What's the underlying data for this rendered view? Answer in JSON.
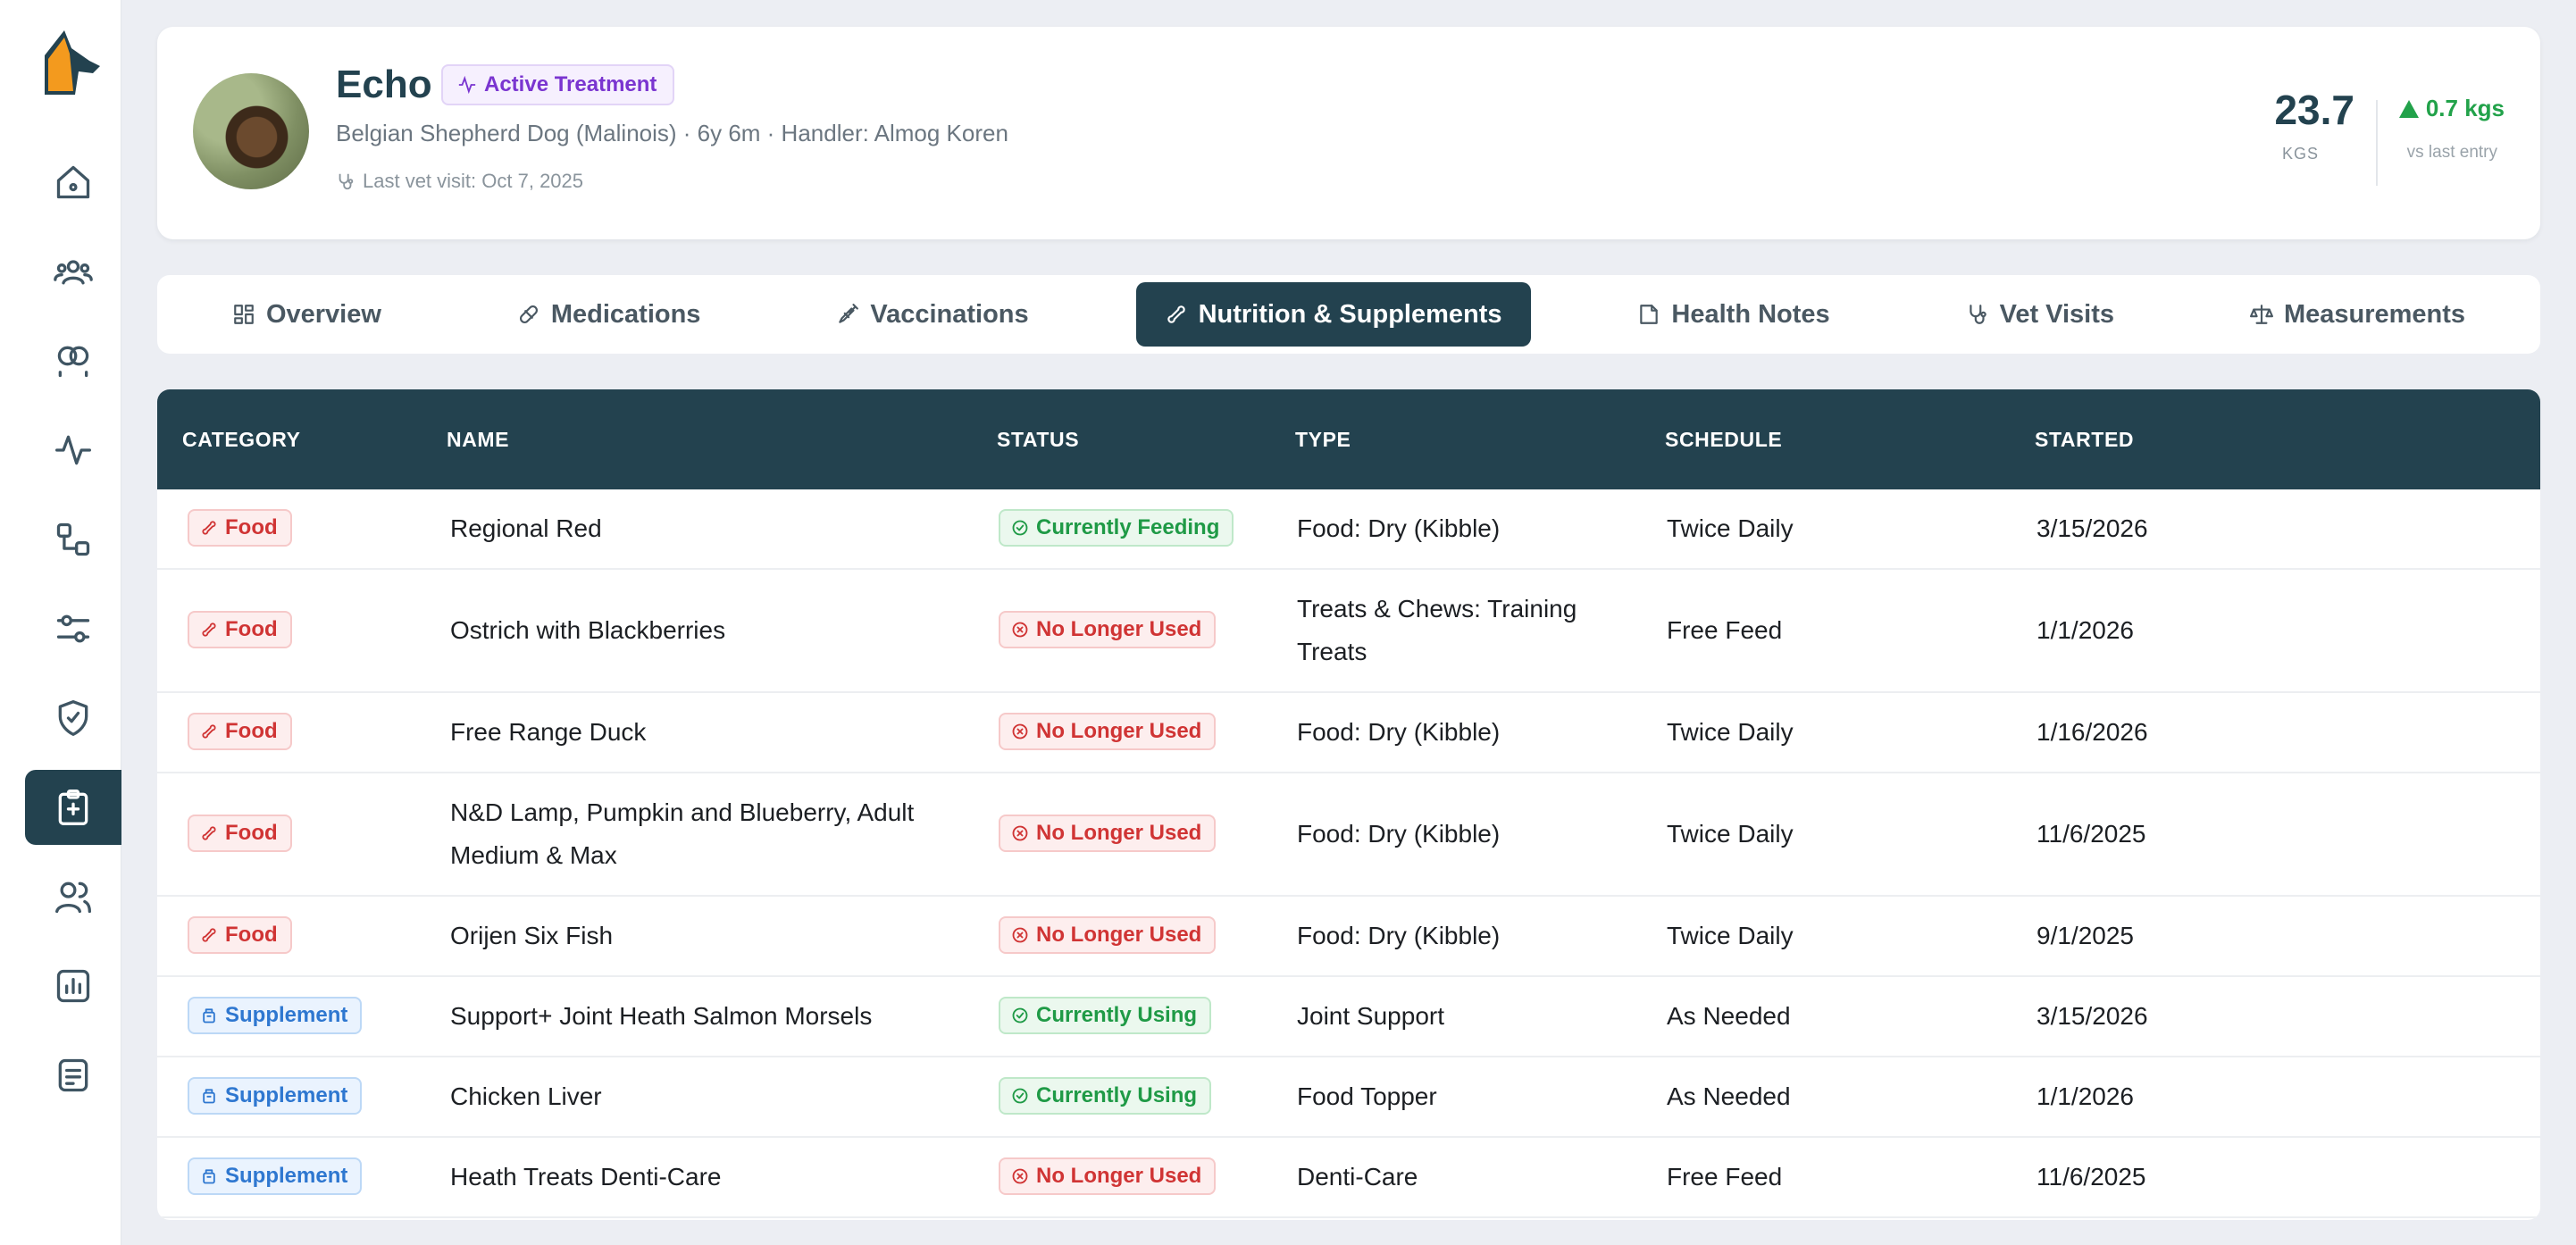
{
  "colors": {
    "primary": "#23424f",
    "background": "#eceef3",
    "accent_purple": "#7a35d0",
    "success": "#1f9a46",
    "danger": "#d03434",
    "info": "#2e77d0"
  },
  "sidebar": {
    "logo": "dog-logo",
    "items": [
      {
        "icon": "home-icon"
      },
      {
        "icon": "team-icon"
      },
      {
        "icon": "circles-icon"
      },
      {
        "icon": "activity-icon"
      },
      {
        "icon": "flow-icon"
      },
      {
        "icon": "sliders-icon"
      },
      {
        "icon": "shield-icon"
      },
      {
        "icon": "medical-clipboard-icon",
        "active": true
      },
      {
        "icon": "users-icon"
      },
      {
        "icon": "chart-icon"
      },
      {
        "icon": "document-icon"
      }
    ]
  },
  "pet": {
    "name": "Echo",
    "status": "Active Treatment",
    "meta": "Belgian Shepherd Dog (Malinois) · 6y 6m · Handler: Almog Koren",
    "last_vet_visit": "Last vet visit: Oct 7, 2025",
    "weight": "23.7",
    "weight_unit": "KGS",
    "weight_delta": "0.7 kgs",
    "weight_delta_sub": "vs last entry"
  },
  "tabs": [
    {
      "label": "Overview",
      "icon": "grid-icon"
    },
    {
      "label": "Medications",
      "icon": "pill-icon"
    },
    {
      "label": "Vaccinations",
      "icon": "syringe-icon"
    },
    {
      "label": "Nutrition & Supplements",
      "icon": "bone-icon",
      "active": true
    },
    {
      "label": "Health Notes",
      "icon": "note-icon"
    },
    {
      "label": "Vet Visits",
      "icon": "stethoscope-icon"
    },
    {
      "label": "Measurements",
      "icon": "scale-icon"
    }
  ],
  "table": {
    "headers": [
      "CATEGORY",
      "NAME",
      "STATUS",
      "TYPE",
      "SCHEDULE",
      "STARTED"
    ],
    "rows": [
      {
        "category": "Food",
        "name": "Regional Red",
        "status": "Currently Feeding",
        "status_kind": "green",
        "type": "Food: Dry (Kibble)",
        "schedule": "Twice Daily",
        "started": "3/15/2026"
      },
      {
        "category": "Food",
        "name": "Ostrich with Blackberries",
        "status": "No Longer Used",
        "status_kind": "red",
        "type": "Treats & Chews: Training Treats",
        "schedule": "Free Feed",
        "started": "1/1/2026"
      },
      {
        "category": "Food",
        "name": "Free Range Duck",
        "status": "No Longer Used",
        "status_kind": "red",
        "type": "Food: Dry (Kibble)",
        "schedule": "Twice Daily",
        "started": "1/16/2026"
      },
      {
        "category": "Food",
        "name": "N&D Lamp, Pumpkin and Blueberry, Adult Medium & Max",
        "status": "No Longer Used",
        "status_kind": "red",
        "type": "Food: Dry (Kibble)",
        "schedule": "Twice Daily",
        "started": "11/6/2025"
      },
      {
        "category": "Food",
        "name": "Orijen Six Fish",
        "status": "No Longer Used",
        "status_kind": "red",
        "type": "Food: Dry (Kibble)",
        "schedule": "Twice Daily",
        "started": "9/1/2025"
      },
      {
        "category": "Supplement",
        "name": "Support+ Joint Heath Salmon Morsels",
        "status": "Currently Using",
        "status_kind": "green",
        "type": "Joint Support",
        "schedule": "As Needed",
        "started": "3/15/2026"
      },
      {
        "category": "Supplement",
        "name": "Chicken Liver",
        "status": "Currently Using",
        "status_kind": "green",
        "type": "Food Topper",
        "schedule": "As Needed",
        "started": "1/1/2026"
      },
      {
        "category": "Supplement",
        "name": "Heath Treats Denti-Care",
        "status": "No Longer Used",
        "status_kind": "red",
        "type": "Denti-Care",
        "schedule": "Free Feed",
        "started": "11/6/2025"
      }
    ]
  }
}
